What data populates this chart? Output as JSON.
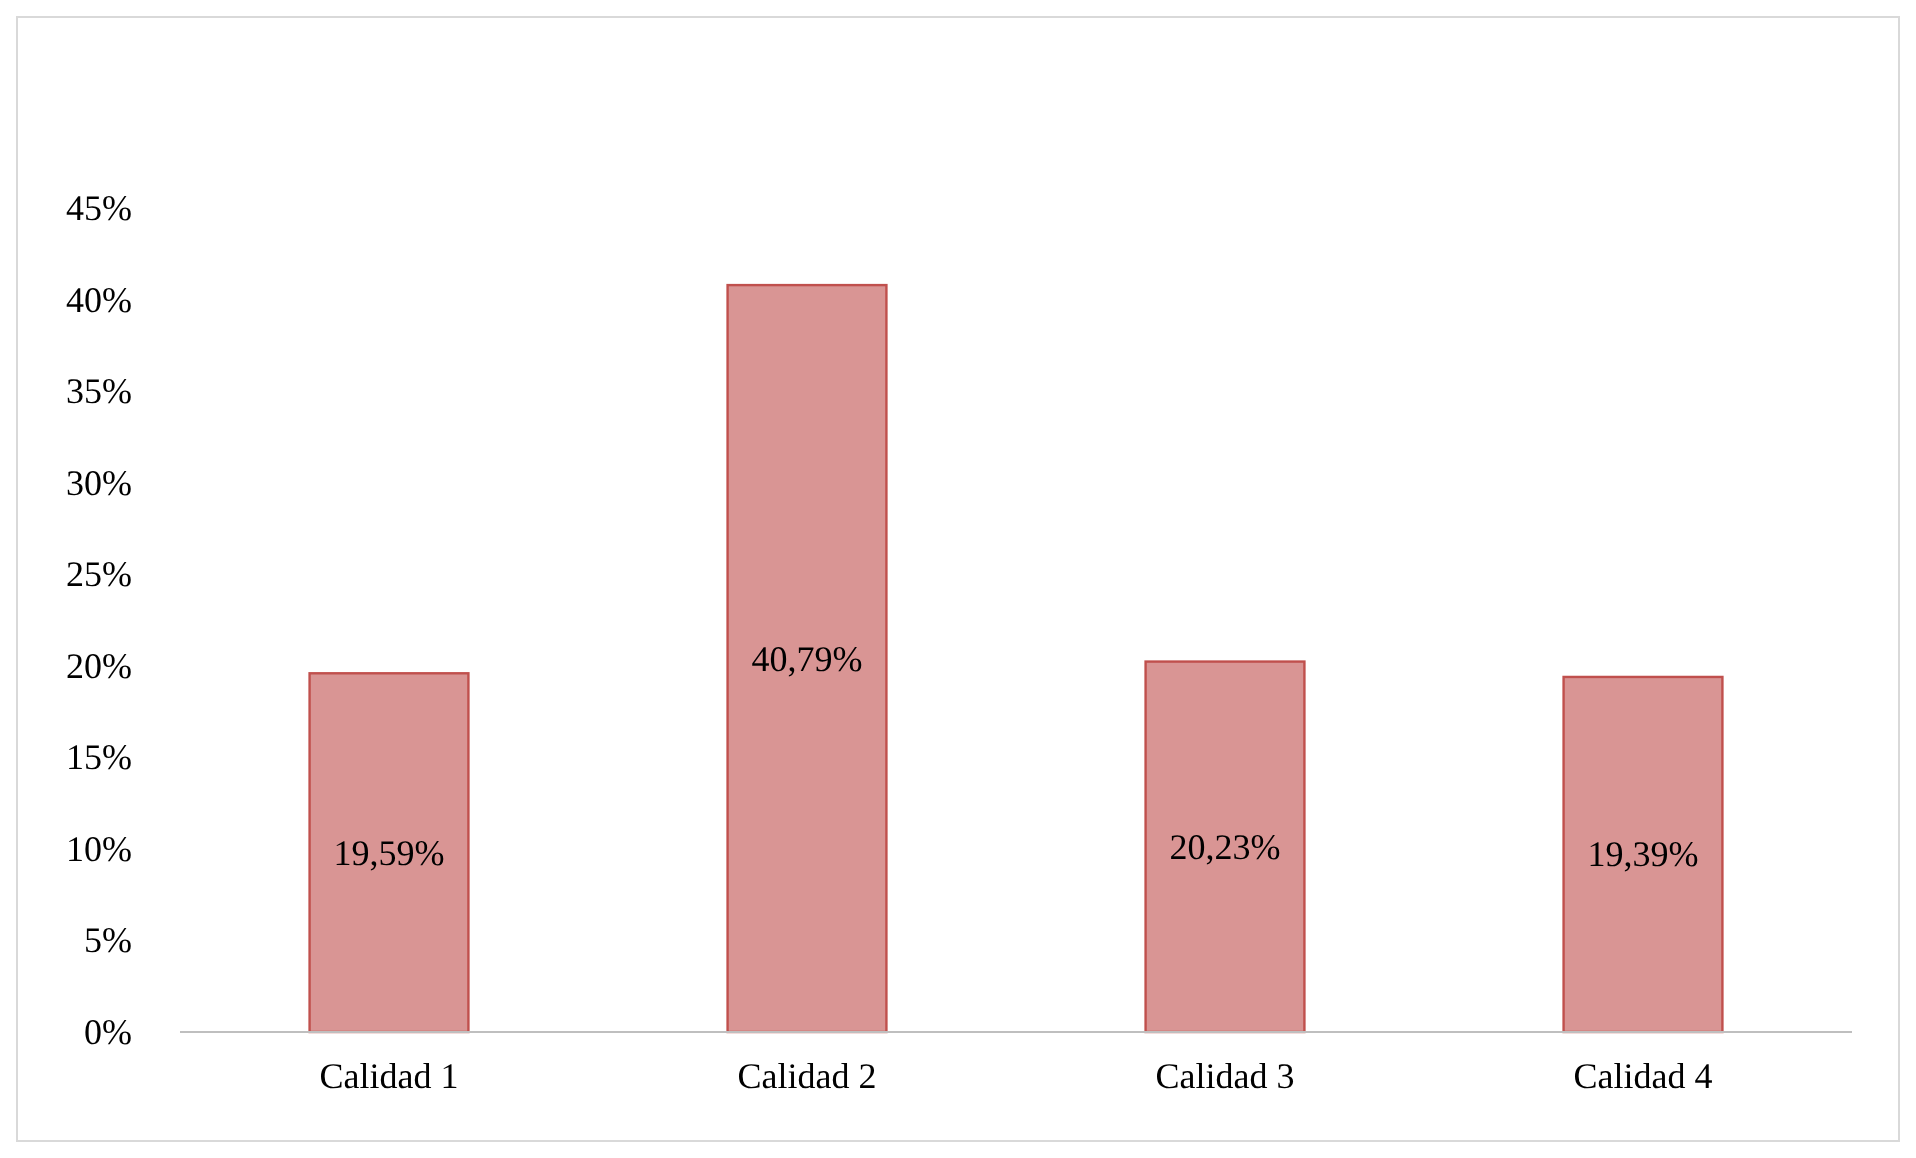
{
  "chart_data": {
    "type": "bar",
    "categories": [
      "Calidad 1",
      "Calidad 2",
      "Calidad 3",
      "Calidad 4"
    ],
    "values": [
      19.59,
      40.79,
      20.23,
      19.39
    ],
    "value_labels": [
      "19,59%",
      "40,79%",
      "20,23%",
      "19,39%"
    ],
    "color": "#d99594",
    "ylim": [
      0,
      45
    ],
    "yticks": [
      {
        "value": 0,
        "label": "0%"
      },
      {
        "value": 5,
        "label": "5%"
      },
      {
        "value": 10,
        "label": "10%"
      },
      {
        "value": 15,
        "label": "15%"
      },
      {
        "value": 20,
        "label": "20%"
      },
      {
        "value": 25,
        "label": "25%"
      },
      {
        "value": 30,
        "label": "30%"
      },
      {
        "value": 35,
        "label": "35%"
      },
      {
        "value": 40,
        "label": "40%"
      },
      {
        "value": 45,
        "label": "45%"
      }
    ],
    "grid": false
  }
}
